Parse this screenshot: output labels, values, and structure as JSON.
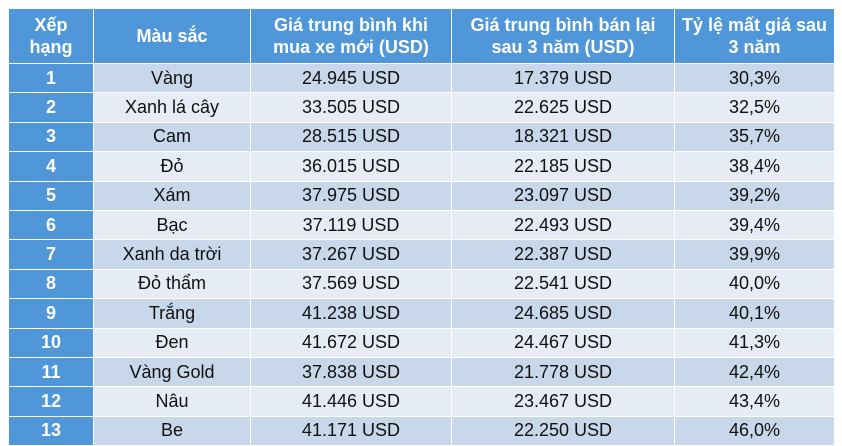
{
  "header": {
    "rank": "Xếp hạng",
    "color": "Màu sắc",
    "new_price": "Giá trung bình khi mua xe mới (USD)",
    "resale_price": "Giá trung bình bán lại sau 3 năm (USD)",
    "depreciation": "Tỷ lệ mất giá sau 3 năm"
  },
  "rows": [
    {
      "rank": "1",
      "color": "Vàng",
      "new_price": "24.945 USD",
      "resale_price": "17.379 USD",
      "depreciation": "30,3%"
    },
    {
      "rank": "2",
      "color": "Xanh lá cây",
      "new_price": "33.505 USD",
      "resale_price": "22.625 USD",
      "depreciation": "32,5%"
    },
    {
      "rank": "3",
      "color": "Cam",
      "new_price": "28.515 USD",
      "resale_price": "18.321 USD",
      "depreciation": "35,7%"
    },
    {
      "rank": "4",
      "color": "Đỏ",
      "new_price": "36.015 USD",
      "resale_price": "22.185 USD",
      "depreciation": "38,4%"
    },
    {
      "rank": "5",
      "color": "Xám",
      "new_price": "37.975 USD",
      "resale_price": "23.097 USD",
      "depreciation": "39,2%"
    },
    {
      "rank": "6",
      "color": "Bạc",
      "new_price": "37.119 USD",
      "resale_price": "22.493 USD",
      "depreciation": "39,4%"
    },
    {
      "rank": "7",
      "color": "Xanh da trời",
      "new_price": "37.267 USD",
      "resale_price": "22.387 USD",
      "depreciation": "39,9%"
    },
    {
      "rank": "8",
      "color": "Đỏ thẩm",
      "new_price": "37.569 USD",
      "resale_price": "22.541 USD",
      "depreciation": "40,0%"
    },
    {
      "rank": "9",
      "color": "Trắng",
      "new_price": "41.238 USD",
      "resale_price": "24.685 USD",
      "depreciation": "40,1%"
    },
    {
      "rank": "10",
      "color": "Đen",
      "new_price": "41.672 USD",
      "resale_price": "24.467 USD",
      "depreciation": "41,3%"
    },
    {
      "rank": "11",
      "color": "Vàng Gold",
      "new_price": "37.838 USD",
      "resale_price": "21.778 USD",
      "depreciation": "42,4%"
    },
    {
      "rank": "12",
      "color": "Nâu",
      "new_price": "41.446 USD",
      "resale_price": "23.467 USD",
      "depreciation": "43,4%"
    },
    {
      "rank": "13",
      "color": "Be",
      "new_price": "41.171 USD",
      "resale_price": "22.250 USD",
      "depreciation": "46,0%"
    }
  ],
  "colors": {
    "header_bg": "#4F97D9",
    "row_odd": "#C9D7EA",
    "row_even": "#E6ECF5"
  }
}
